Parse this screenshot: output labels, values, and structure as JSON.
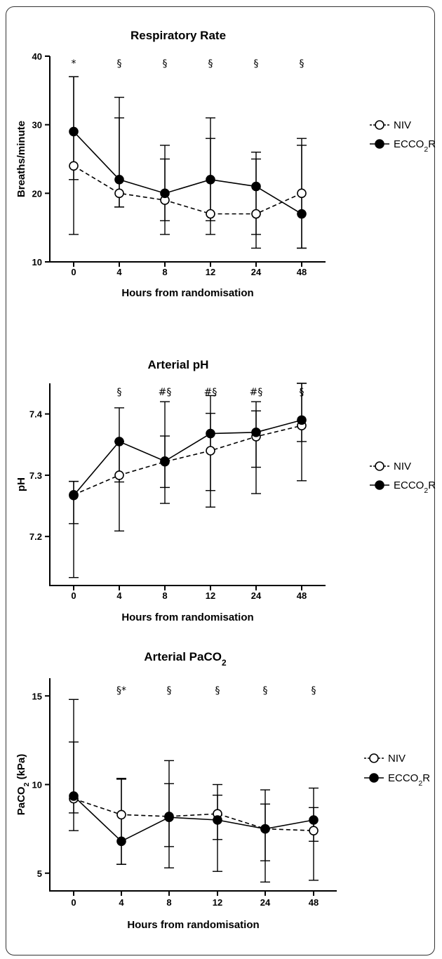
{
  "chart_data": [
    {
      "type": "line",
      "title": "Respiratory Rate",
      "xlabel": "Hours from randomisation",
      "ylabel": "Breaths/minute",
      "categories": [
        "0",
        "4",
        "8",
        "12",
        "24",
        "48"
      ],
      "ylim": [
        10,
        40
      ],
      "yticks": [
        10,
        20,
        30,
        40
      ],
      "significance": [
        "*",
        "§",
        "§",
        "§",
        "§",
        "§"
      ],
      "series": [
        {
          "name": "NIV",
          "marker": "open-circle",
          "line": "dashed",
          "values": [
            24,
            20,
            19,
            17,
            17,
            20
          ],
          "err_low": [
            14,
            18,
            14,
            14,
            12,
            12
          ],
          "err_high": [
            37,
            31,
            25,
            28,
            25,
            27
          ]
        },
        {
          "name": "ECCO₂R",
          "marker": "filled-circle",
          "line": "solid",
          "values": [
            29,
            22,
            20,
            22,
            21,
            17
          ],
          "err_low": [
            22,
            18,
            16,
            16,
            14,
            12
          ],
          "err_high": [
            37,
            34,
            27,
            31,
            26,
            28
          ]
        }
      ]
    },
    {
      "type": "line",
      "title": "Arterial pH",
      "xlabel": "Hours from randomisation",
      "ylabel": "pH",
      "categories": [
        "0",
        "4",
        "8",
        "12",
        "24",
        "48"
      ],
      "ylim": [
        7.12,
        7.45
      ],
      "yticks": [
        7.2,
        7.3,
        7.4
      ],
      "significance": [
        "",
        "§",
        "#§",
        "#§",
        "#§",
        "§"
      ],
      "series": [
        {
          "name": "NIV",
          "marker": "open-circle",
          "line": "dashed",
          "values": [
            7.268,
            7.3,
            7.322,
            7.34,
            7.363,
            7.381
          ],
          "err_low": [
            7.133,
            7.209,
            7.254,
            7.248,
            7.27,
            7.291
          ],
          "err_high": [
            7.29,
            7.41,
            7.42,
            7.43,
            7.42,
            7.45
          ]
        },
        {
          "name": "ECCO₂R",
          "marker": "filled-circle",
          "line": "solid",
          "values": [
            7.267,
            7.355,
            7.323,
            7.368,
            7.37,
            7.39
          ],
          "err_low": [
            7.221,
            7.289,
            7.28,
            7.275,
            7.313,
            7.355
          ],
          "err_high": [
            7.29,
            7.355,
            7.364,
            7.401,
            7.405,
            7.45
          ]
        }
      ]
    },
    {
      "type": "line",
      "title": "Arterial PaCO₂",
      "xlabel": "Hours from randomisation",
      "ylabel": "PaCO₂ (kPa)",
      "categories": [
        "0",
        "4",
        "8",
        "12",
        "24",
        "48"
      ],
      "ylim": [
        4,
        16
      ],
      "yticks": [
        5,
        10,
        15
      ],
      "significance": [
        "",
        "§*",
        "§",
        "§",
        "§",
        "§"
      ],
      "series": [
        {
          "name": "NIV",
          "marker": "open-circle",
          "line": "dashed",
          "values": [
            9.2,
            8.3,
            8.2,
            8.35,
            7.5,
            7.4
          ],
          "err_low": [
            7.4,
            5.5,
            5.3,
            5.1,
            4.5,
            4.6
          ],
          "err_high": [
            14.8,
            10.35,
            11.35,
            10,
            9.7,
            9.8
          ]
        },
        {
          "name": "ECCO₂R",
          "marker": "filled-circle",
          "line": "solid",
          "values": [
            9.35,
            6.8,
            8.15,
            8,
            7.5,
            8
          ],
          "err_low": [
            8.4,
            5.5,
            6.5,
            6.9,
            5.7,
            6.8
          ],
          "err_high": [
            12.4,
            10.3,
            10.05,
            9.4,
            8.9,
            8.7
          ]
        }
      ]
    }
  ]
}
